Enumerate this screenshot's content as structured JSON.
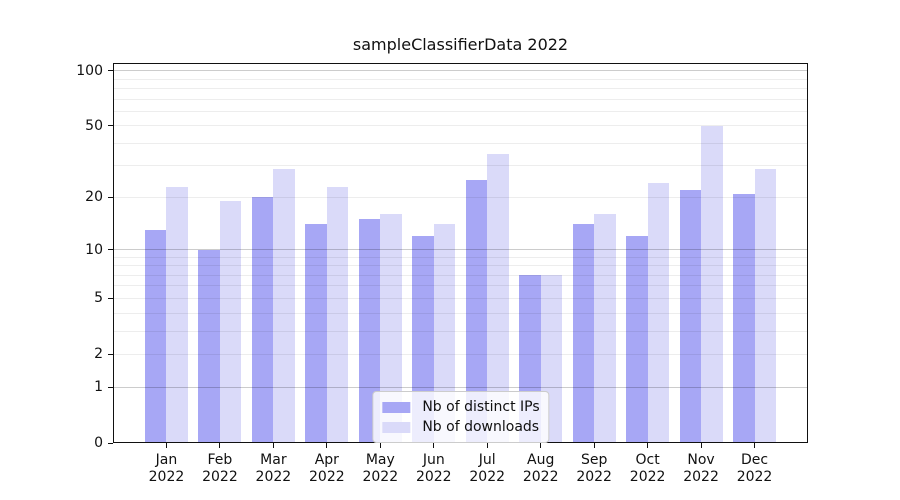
{
  "chart_data": {
    "type": "bar",
    "title": "sampleClassifierData 2022",
    "categories": [
      "Jan",
      "Feb",
      "Mar",
      "Apr",
      "May",
      "Jun",
      "Jul",
      "Aug",
      "Sep",
      "Oct",
      "Nov",
      "Dec"
    ],
    "x_year_label": "2022",
    "series": [
      {
        "name": "Nb of distinct IPs",
        "color": "#a7a7f5",
        "values": [
          13,
          10,
          20,
          14,
          15,
          12,
          25,
          7,
          14,
          12,
          22,
          21
        ]
      },
      {
        "name": "Nb of downloads",
        "color": "#dadaf9",
        "values": [
          23,
          19,
          29,
          23,
          16,
          14,
          35,
          7,
          16,
          24,
          50,
          29
        ]
      }
    ],
    "yscale": "log1p",
    "ylim": [
      0,
      110
    ],
    "yticks": [
      0,
      1,
      2,
      5,
      10,
      20,
      50,
      100
    ],
    "grid": {
      "on": true,
      "major_lines": [
        1,
        10,
        100
      ],
      "minor_lines": [
        2,
        3,
        4,
        5,
        6,
        7,
        8,
        9,
        20,
        30,
        40,
        50,
        60,
        70,
        80,
        90
      ],
      "major_color": "rgba(0,0,0,0.20)",
      "minor_color": "rgba(0,0,0,0.07)"
    },
    "legend": {
      "position": "lower center",
      "entries": [
        "Nb of distinct IPs",
        "Nb of downloads"
      ]
    }
  },
  "style": {
    "background": "#ffffff",
    "spine_color": "#111111",
    "text_color": "#111111",
    "legend_bg": "rgba(255,255,255,0.8)",
    "legend_border": "#cccccc"
  }
}
